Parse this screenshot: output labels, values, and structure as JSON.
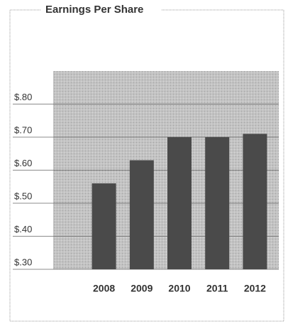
{
  "chart_data": {
    "type": "bar",
    "title": "Earnings Per Share",
    "categories": [
      "2008",
      "2009",
      "2010",
      "2011",
      "2012"
    ],
    "values": [
      0.56,
      0.63,
      0.7,
      0.7,
      0.71
    ],
    "color": "#4a4a4a",
    "ylim": [
      0.3,
      0.9
    ],
    "yticks": [
      {
        "value": 0.3,
        "label": "$.30"
      },
      {
        "value": 0.4,
        "label": "$.40"
      },
      {
        "value": 0.5,
        "label": "$.50"
      },
      {
        "value": 0.6,
        "label": "$.60"
      },
      {
        "value": 0.7,
        "label": "$.70"
      },
      {
        "value": 0.8,
        "label": "$.80"
      }
    ],
    "grid": true
  }
}
